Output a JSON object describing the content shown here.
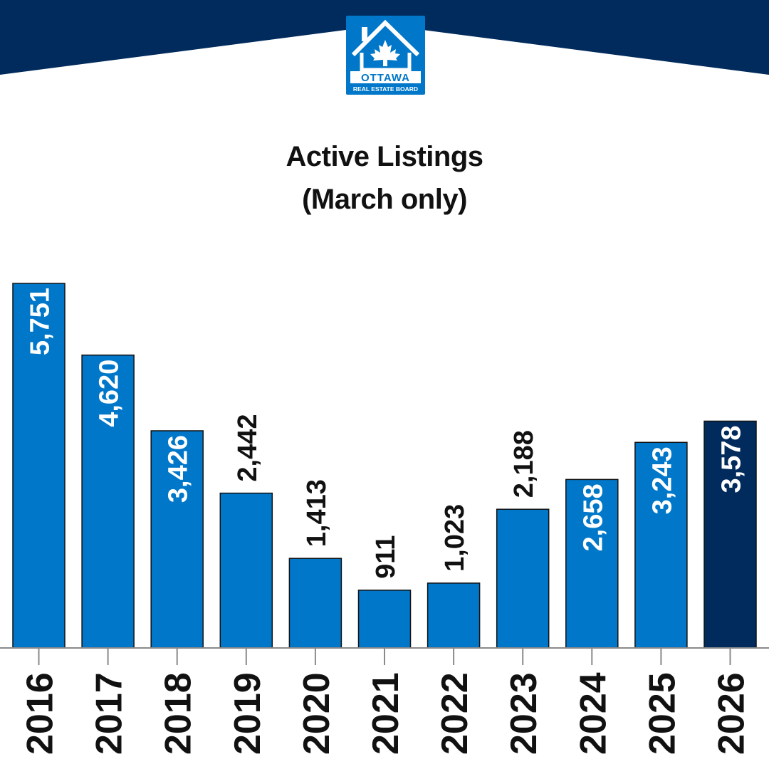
{
  "brand": {
    "logo_text_main": "OTTAWA",
    "logo_text_sub": "REAL ESTATE BOARD",
    "colors": {
      "navy": "#002b5c",
      "blue": "#0077c8",
      "white": "#ffffff"
    }
  },
  "chart_data": {
    "type": "bar",
    "title": "Active Listings",
    "subtitle": "(March only)",
    "categories": [
      "2016",
      "2017",
      "2018",
      "2019",
      "2020",
      "2021",
      "2022",
      "2023",
      "2024",
      "2025",
      "2026"
    ],
    "values": [
      5751,
      4620,
      3426,
      2442,
      1413,
      911,
      1023,
      2188,
      2658,
      3243,
      3578
    ],
    "value_labels": [
      "5,751",
      "4,620",
      "3,426",
      "2,442",
      "1,413",
      "911",
      "1,023",
      "2,188",
      "2,658",
      "3,243",
      "3,578"
    ],
    "bar_colors": [
      "#0077c8",
      "#0077c8",
      "#0077c8",
      "#0077c8",
      "#0077c8",
      "#0077c8",
      "#0077c8",
      "#0077c8",
      "#0077c8",
      "#0077c8",
      "#002b5c"
    ],
    "ylim": [
      0,
      5751
    ],
    "grid": false,
    "xlabel": "",
    "ylabel": ""
  }
}
